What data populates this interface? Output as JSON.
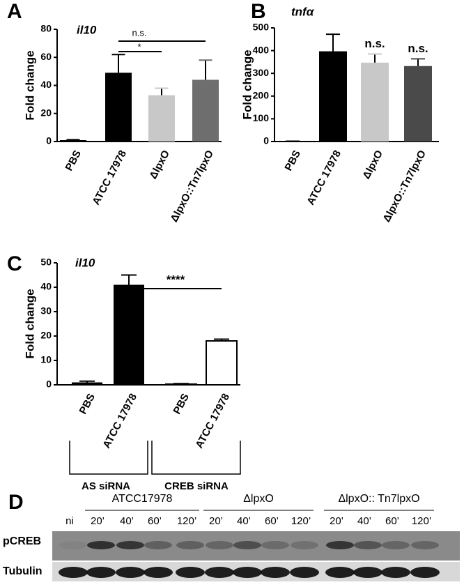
{
  "chart_data": [
    {
      "type": "bar",
      "panel_label": "A",
      "title": "il10",
      "ylabel": "Fold change",
      "categories": [
        "PBS",
        "ATCC 17978",
        "ΔlpxO",
        "ΔlpxO::Tn7lpxO"
      ],
      "values": [
        1,
        49,
        33,
        44
      ],
      "errors": [
        0.3,
        13,
        5,
        14
      ],
      "colors": [
        "#000000",
        "#000000",
        "#c8c8c8",
        "#6e6e6e"
      ],
      "ylim": [
        0,
        80
      ],
      "yticks": [
        0,
        20,
        40,
        60,
        80
      ],
      "annotations": [
        "n.s.",
        "*"
      ]
    },
    {
      "type": "bar",
      "panel_label": "B",
      "title": "tnfα",
      "ylabel": "Fold change",
      "categories": [
        "PBS",
        "ATCC 17978",
        "ΔlpxO",
        "ΔlpxO::Tn7lpxO"
      ],
      "values": [
        1,
        397,
        347,
        332
      ],
      "errors": [
        0.5,
        75,
        38,
        32
      ],
      "colors": [
        "#000000",
        "#000000",
        "#c8c8c8",
        "#4a4a4a"
      ],
      "ylim": [
        0,
        500
      ],
      "yticks": [
        0,
        100,
        200,
        300,
        400,
        500
      ],
      "annotations": [
        "n.s.",
        "n.s."
      ]
    },
    {
      "type": "bar",
      "panel_label": "C",
      "title": "il10",
      "ylabel": "Fold change",
      "categories": [
        "PBS",
        "ATCC 17978",
        "PBS",
        "ATCC 17978"
      ],
      "values": [
        1,
        41,
        0.3,
        18
      ],
      "errors": [
        0.5,
        4,
        0.2,
        0.7
      ],
      "colors": [
        "#000000",
        "#000000",
        "#ffffff",
        "#ffffff"
      ],
      "ylim": [
        0,
        50
      ],
      "yticks": [
        0,
        10,
        20,
        30,
        40,
        50
      ],
      "annotations": [
        "****"
      ],
      "groups": [
        "AS siRNA",
        "CREB siRNA"
      ]
    }
  ],
  "blot": {
    "panel_label": "D",
    "groups": [
      "ATCC17978",
      "ΔlpxO",
      "ΔlpxO:: Tn7lpxO"
    ],
    "lanes": [
      "ni",
      "20’",
      "40’",
      "60’",
      "120’",
      "20’",
      "40’",
      "60’",
      "120’",
      "20’",
      "40’",
      "60’",
      "120’"
    ],
    "rows": [
      "pCREB",
      "Tubulin"
    ]
  }
}
